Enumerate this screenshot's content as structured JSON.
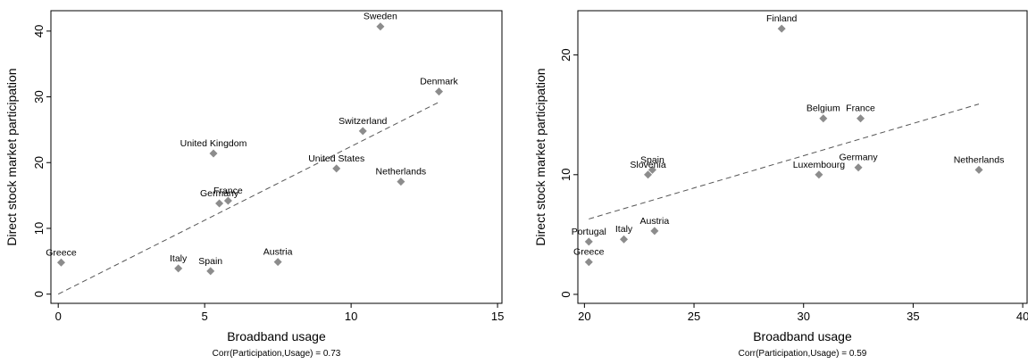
{
  "chart_data": [
    {
      "type": "scatter",
      "x_label": "Broadband usage",
      "y_label": "Direct stock market participation",
      "note": "Corr(Participation,Usage) = 0.73",
      "point_labels": [
        "Greece",
        "Italy",
        "Spain",
        "Austria",
        "Germany",
        "France",
        "United Kingdom",
        "United States",
        "Switzerland",
        "Sweden",
        "Denmark",
        "Netherlands"
      ],
      "x": [
        0.1,
        4.1,
        5.2,
        7.5,
        5.5,
        5.8,
        5.3,
        9.5,
        10.4,
        11.0,
        13.0,
        11.7
      ],
      "series": [
        {
          "color": "#8c8c8c",
          "values": [
            4.8,
            3.9,
            3.5,
            4.9,
            13.8,
            14.2,
            21.4,
            19.1,
            24.8,
            40.7,
            30.8,
            17.1
          ]
        }
      ],
      "fit_line": {
        "x": [
          0,
          13.0
        ],
        "y": [
          0,
          29.2
        ]
      },
      "xlim": [
        -0.25,
        15.15
      ],
      "ylim": [
        -1.4,
        43.1
      ],
      "xticks": [
        0,
        5,
        10,
        15
      ],
      "yticks": [
        0,
        10,
        20,
        30,
        40
      ]
    },
    {
      "type": "scatter",
      "x_label": "Broadband usage",
      "y_label": "Direct stock market participation",
      "note": "Corr(Participation,Usage) = 0.59",
      "point_labels": [
        "Finland",
        "Belgium",
        "France",
        "Luxembourg",
        "Germany",
        "Netherlands",
        "Spain",
        "Slovenia",
        "Portugal",
        "Greece",
        "Italy",
        "Austria"
      ],
      "x": [
        29.0,
        30.9,
        32.6,
        30.7,
        32.5,
        38.0,
        23.1,
        22.9,
        20.2,
        20.2,
        21.8,
        23.2
      ],
      "series": [
        {
          "color": "#8c8c8c",
          "values": [
            22.2,
            14.7,
            14.7,
            10.0,
            10.6,
            10.4,
            10.4,
            10.0,
            4.4,
            2.7,
            4.6,
            5.3
          ]
        }
      ],
      "fit_line": {
        "x": [
          20.2,
          38.0
        ],
        "y": [
          6.3,
          15.9
        ]
      },
      "xlim": [
        19.7,
        40.2
      ],
      "ylim": [
        -0.75,
        23.7
      ],
      "xticks": [
        20,
        25,
        30,
        35,
        40
      ],
      "yticks": [
        0,
        10,
        20
      ]
    }
  ]
}
